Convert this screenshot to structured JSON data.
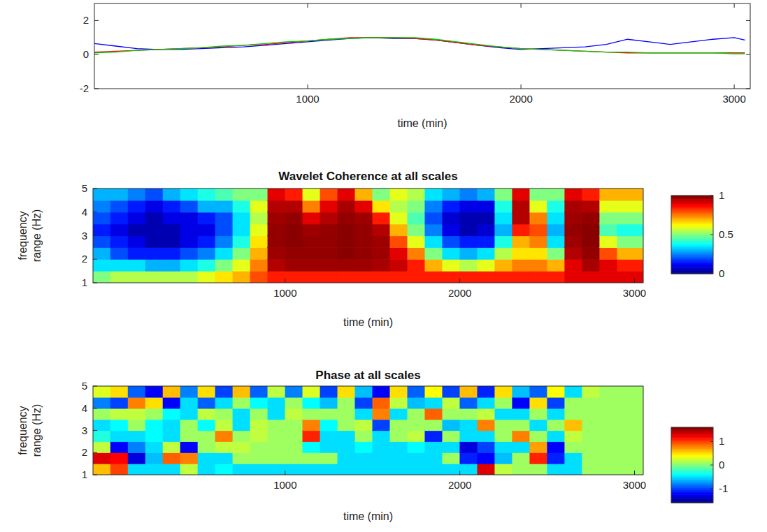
{
  "chart_data": [
    {
      "type": "line",
      "xlabel": "time (min)",
      "x": [
        0,
        100,
        200,
        300,
        400,
        500,
        600,
        700,
        800,
        900,
        1000,
        1100,
        1200,
        1300,
        1400,
        1500,
        1600,
        1700,
        1800,
        1900,
        2000,
        2100,
        2200,
        2300,
        2400,
        2500,
        2600,
        2700,
        2800,
        2900,
        3000,
        3050
      ],
      "series": [
        {
          "color": "#0000ff",
          "values": [
            0.65,
            0.5,
            0.35,
            0.3,
            0.3,
            0.35,
            0.4,
            0.45,
            0.55,
            0.65,
            0.75,
            0.85,
            0.95,
            1.0,
            0.95,
            0.95,
            0.85,
            0.7,
            0.55,
            0.4,
            0.3,
            0.35,
            0.4,
            0.45,
            0.6,
            0.9,
            0.75,
            0.6,
            0.75,
            0.9,
            1.0,
            0.85
          ]
        },
        {
          "color": "#ff0000",
          "values": [
            0.15,
            0.2,
            0.25,
            0.3,
            0.35,
            0.4,
            0.45,
            0.55,
            0.6,
            0.7,
            0.8,
            0.9,
            1.0,
            1.0,
            1.0,
            0.95,
            0.85,
            0.7,
            0.55,
            0.45,
            0.35,
            0.3,
            0.25,
            0.2,
            0.15,
            0.1,
            0.1,
            0.1,
            0.1,
            0.1,
            0.1,
            0.1
          ]
        },
        {
          "color": "#00cc00",
          "values": [
            0.1,
            0.15,
            0.25,
            0.3,
            0.35,
            0.4,
            0.5,
            0.55,
            0.65,
            0.75,
            0.8,
            0.9,
            0.95,
            1.0,
            1.0,
            1.0,
            0.9,
            0.75,
            0.6,
            0.45,
            0.35,
            0.3,
            0.25,
            0.2,
            0.15,
            0.15,
            0.1,
            0.1,
            0.1,
            0.1,
            0.05,
            0.05
          ]
        }
      ],
      "xlim": [
        0,
        3075
      ],
      "ylim": [
        -2,
        3
      ],
      "xticks": [
        1000,
        2000,
        3000
      ],
      "yticks": [
        -2,
        0,
        2
      ]
    },
    {
      "type": "heatmap",
      "title": "Wavelet Coherence at all scales",
      "xlabel": "time (min)",
      "ylabel": "frequency range (Hz)",
      "x": [
        -50,
        50,
        150,
        250,
        350,
        450,
        550,
        650,
        750,
        850,
        950,
        1050,
        1150,
        1250,
        1350,
        1450,
        1550,
        1650,
        1750,
        1850,
        1950,
        2050,
        2150,
        2250,
        2350,
        2450,
        2550,
        2650,
        2750,
        2850,
        2950
      ],
      "y": [
        1.25,
        1.75,
        2.25,
        2.75,
        3.25,
        3.75,
        4.25,
        4.75
      ],
      "z": [
        [
          0.5,
          0.35,
          0.3,
          0.2,
          0.15,
          0.2,
          0.25,
          0.3
        ],
        [
          0.55,
          0.35,
          0.2,
          0.15,
          0.1,
          0.15,
          0.2,
          0.3
        ],
        [
          0.55,
          0.35,
          0.15,
          0.1,
          0.05,
          0.1,
          0.15,
          0.25
        ],
        [
          0.55,
          0.3,
          0.15,
          0.05,
          0.05,
          0.05,
          0.1,
          0.2
        ],
        [
          0.55,
          0.3,
          0.15,
          0.05,
          0.05,
          0.1,
          0.15,
          0.3
        ],
        [
          0.55,
          0.35,
          0.2,
          0.1,
          0.1,
          0.1,
          0.2,
          0.35
        ],
        [
          0.6,
          0.4,
          0.25,
          0.15,
          0.1,
          0.15,
          0.3,
          0.4
        ],
        [
          0.65,
          0.5,
          0.35,
          0.25,
          0.2,
          0.2,
          0.3,
          0.45
        ],
        [
          0.7,
          0.6,
          0.5,
          0.4,
          0.35,
          0.35,
          0.4,
          0.5
        ],
        [
          0.8,
          0.75,
          0.7,
          0.65,
          0.6,
          0.55,
          0.6,
          0.5
        ],
        [
          0.85,
          0.95,
          0.97,
          0.98,
          0.98,
          0.97,
          0.95,
          0.9
        ],
        [
          0.85,
          0.97,
          0.98,
          0.99,
          0.99,
          0.98,
          0.95,
          0.85
        ],
        [
          0.85,
          0.97,
          0.98,
          0.98,
          0.97,
          0.9,
          0.75,
          0.6
        ],
        [
          0.85,
          0.97,
          0.98,
          0.98,
          0.98,
          0.95,
          0.9,
          0.8
        ],
        [
          0.85,
          0.97,
          0.99,
          0.99,
          0.99,
          0.98,
          0.96,
          0.9
        ],
        [
          0.85,
          0.97,
          0.98,
          0.98,
          0.98,
          0.97,
          0.9,
          0.7
        ],
        [
          0.85,
          0.96,
          0.97,
          0.97,
          0.95,
          0.85,
          0.65,
          0.5
        ],
        [
          0.85,
          0.93,
          0.9,
          0.8,
          0.7,
          0.6,
          0.55,
          0.6
        ],
        [
          0.85,
          0.85,
          0.75,
          0.6,
          0.5,
          0.45,
          0.5,
          0.55
        ],
        [
          0.85,
          0.7,
          0.5,
          0.35,
          0.25,
          0.2,
          0.25,
          0.35
        ],
        [
          0.85,
          0.6,
          0.35,
          0.2,
          0.1,
          0.08,
          0.15,
          0.3
        ],
        [
          0.85,
          0.55,
          0.3,
          0.15,
          0.05,
          0.05,
          0.1,
          0.25
        ],
        [
          0.85,
          0.6,
          0.35,
          0.15,
          0.08,
          0.05,
          0.1,
          0.3
        ],
        [
          0.85,
          0.7,
          0.55,
          0.4,
          0.3,
          0.35,
          0.4,
          0.5
        ],
        [
          0.85,
          0.75,
          0.65,
          0.7,
          0.85,
          0.95,
          0.95,
          0.9
        ],
        [
          0.85,
          0.75,
          0.65,
          0.75,
          0.8,
          0.75,
          0.6,
          0.5
        ],
        [
          0.85,
          0.7,
          0.5,
          0.35,
          0.3,
          0.35,
          0.4,
          0.5
        ],
        [
          0.9,
          0.9,
          0.95,
          0.97,
          0.98,
          0.97,
          0.96,
          0.9
        ],
        [
          0.9,
          0.96,
          0.98,
          0.99,
          0.99,
          0.98,
          0.95,
          0.85
        ],
        [
          0.9,
          0.9,
          0.8,
          0.6,
          0.45,
          0.5,
          0.6,
          0.7
        ],
        [
          0.9,
          0.85,
          0.7,
          0.5,
          0.4,
          0.5,
          0.6,
          0.7
        ]
      ],
      "xlim": [
        -100,
        3050
      ],
      "ylim": [
        1,
        5
      ],
      "xticks": [
        1000,
        2000,
        3000
      ],
      "yticks": [
        1,
        2,
        3,
        4,
        5
      ],
      "colorbar_range": [
        0,
        1
      ],
      "colorbar_ticks": [
        0,
        0.5,
        1
      ]
    },
    {
      "type": "heatmap",
      "title": "Phase at all scales",
      "xlabel": "time (min)",
      "ylabel": "frequency range (Hz)",
      "x": [
        -50,
        50,
        150,
        250,
        350,
        450,
        550,
        650,
        750,
        850,
        950,
        1050,
        1150,
        1250,
        1350,
        1450,
        1550,
        1650,
        1750,
        1850,
        1950,
        2050,
        2150,
        2250,
        2350,
        2450,
        2550,
        2650,
        2750,
        2850,
        2950
      ],
      "y": [
        1.25,
        1.75,
        2.25,
        2.75,
        3.25,
        3.75,
        4.25,
        4.75
      ],
      "z": [
        [
          0.6,
          1.3,
          0.2,
          -0.3,
          -0.5,
          0.1,
          -0.8,
          0.3
        ],
        [
          1.0,
          1.2,
          -1.2,
          -0.5,
          -0.4,
          0.2,
          -1.0,
          0.5
        ],
        [
          -0.5,
          -1.3,
          -0.8,
          -0.5,
          0.1,
          0.2,
          0.8,
          -0.9
        ],
        [
          -0.5,
          -0.6,
          -0.5,
          -0.4,
          -0.4,
          0.1,
          0.5,
          -1.2
        ],
        [
          -0.5,
          0.9,
          0.2,
          -0.5,
          -0.5,
          -0.4,
          -1.2,
          0.6
        ],
        [
          0.2,
          0.8,
          -1.2,
          0.1,
          0.1,
          -0.5,
          -0.5,
          -0.8
        ],
        [
          -0.5,
          -0.5,
          0.1,
          0.1,
          -0.4,
          0.2,
          -0.9,
          0.5
        ],
        [
          -0.4,
          -0.5,
          0.2,
          0.8,
          0.2,
          0.1,
          -0.5,
          -1.0
        ],
        [
          -0.5,
          0.1,
          0.2,
          0.1,
          -0.5,
          -0.5,
          0.1,
          0.6
        ],
        [
          -0.5,
          0.1,
          0.1,
          0.2,
          0.2,
          0.1,
          -0.4,
          -0.9
        ],
        [
          -0.5,
          0.1,
          0.1,
          0.1,
          0.1,
          -0.5,
          -0.5,
          0.2
        ],
        [
          -0.5,
          0.1,
          0.1,
          0.1,
          0.1,
          0.2,
          0.1,
          -0.8
        ],
        [
          -0.5,
          0.1,
          -0.4,
          1.1,
          0.8,
          0.1,
          -0.4,
          0.3
        ],
        [
          -0.5,
          0.1,
          -0.5,
          -0.5,
          -0.4,
          0.1,
          -0.6,
          -1.0
        ],
        [
          -0.5,
          -0.5,
          -0.5,
          -0.5,
          0.1,
          0.1,
          0.1,
          0.5
        ],
        [
          -0.5,
          -0.5,
          -0.4,
          0.1,
          0.2,
          -0.5,
          -1.0,
          -0.6
        ],
        [
          -0.5,
          -0.5,
          -0.5,
          -0.5,
          -1.0,
          0.8,
          0.9,
          -1.2
        ],
        [
          -0.5,
          -0.5,
          -0.5,
          0.1,
          0.1,
          -0.5,
          0.2,
          0.5
        ],
        [
          -0.5,
          -0.5,
          -0.4,
          0.2,
          0.1,
          0.1,
          -0.6,
          -0.9
        ],
        [
          -0.5,
          -0.5,
          -0.5,
          -1.1,
          0.1,
          0.9,
          -0.5,
          0.4
        ],
        [
          -0.5,
          0.1,
          -0.5,
          0.1,
          -0.6,
          0.1,
          0.2,
          -1.0
        ],
        [
          -0.5,
          -1.1,
          -1.3,
          -0.5,
          -0.5,
          0.1,
          -0.9,
          0.6
        ],
        [
          1.3,
          -1.2,
          -1.0,
          -0.5,
          0.8,
          0.2,
          -0.5,
          -1.1
        ],
        [
          0.2,
          -0.6,
          -0.5,
          0.1,
          0.1,
          -0.5,
          0.1,
          0.5
        ],
        [
          0.1,
          0.1,
          -0.5,
          0.8,
          0.1,
          -0.5,
          -1.2,
          -0.6
        ],
        [
          0.1,
          1.1,
          0.7,
          0.1,
          -0.5,
          0.1,
          0.5,
          -0.9
        ],
        [
          -0.5,
          -1.1,
          -1.2,
          -0.5,
          0.1,
          -0.5,
          -1.0,
          0.4
        ],
        [
          -0.5,
          -0.5,
          0.1,
          0.2,
          0.6,
          0.1,
          0.1,
          -0.5
        ],
        [
          0.1,
          0.1,
          0.1,
          0.1,
          0.1,
          0.1,
          0.1,
          0.2
        ],
        [
          0.1,
          0.1,
          0.1,
          0.1,
          0.1,
          0.1,
          0.1,
          0.1
        ],
        [
          0.1,
          0.1,
          0.1,
          0.1,
          0.1,
          0.1,
          0.1,
          0.1
        ]
      ],
      "xlim": [
        -100,
        3050
      ],
      "ylim": [
        1,
        5
      ],
      "xticks": [
        1000,
        2000,
        3000
      ],
      "yticks": [
        1,
        2,
        3,
        4,
        5
      ],
      "colorbar_range": [
        -1.6,
        1.6
      ],
      "colorbar_ticks": [
        -1,
        0,
        1
      ]
    }
  ]
}
